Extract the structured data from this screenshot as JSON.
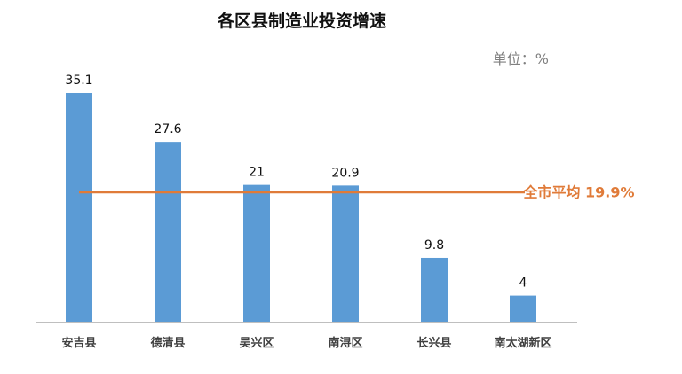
{
  "chart_data": {
    "type": "bar",
    "title": "各区县制造业投资增速",
    "unit_label": "单位：%",
    "categories": [
      "安吉县",
      "德清县",
      "吴兴区",
      "南浔区",
      "长兴县",
      "南太湖新区"
    ],
    "values": [
      35.1,
      27.6,
      21,
      20.9,
      9.8,
      4
    ],
    "value_labels": [
      "35.1",
      "27.6",
      "21",
      "20.9",
      "9.8",
      "4"
    ],
    "ylim": [
      0,
      35.1
    ],
    "grid": false,
    "reference_line": {
      "label": "全市平均 19.9%",
      "value": 19.9
    },
    "colors": {
      "bar": "#5B9BD5",
      "reference_line": "#E07B39",
      "axis": "#BFBFBF"
    }
  }
}
